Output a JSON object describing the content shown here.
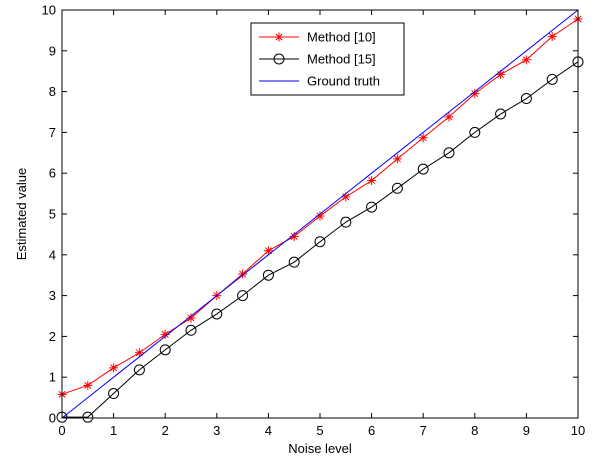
{
  "chart_data": {
    "type": "line",
    "title": "",
    "xlabel": "Noise level",
    "ylabel": "Estimated value",
    "xlim": [
      0,
      10
    ],
    "ylim": [
      0,
      10
    ],
    "xticks": [
      0,
      1,
      2,
      3,
      4,
      5,
      6,
      7,
      8,
      9,
      10
    ],
    "yticks": [
      0,
      1,
      2,
      3,
      4,
      5,
      6,
      7,
      8,
      9,
      10
    ],
    "grid": false,
    "legend_position": "top-center",
    "x": [
      0,
      0.5,
      1,
      1.5,
      2,
      2.5,
      3,
      3.5,
      4,
      4.5,
      5,
      5.5,
      6,
      6.5,
      7,
      7.5,
      8,
      8.5,
      9,
      9.5,
      10
    ],
    "series": [
      {
        "name": "Method [10]",
        "color": "#ff0000",
        "marker": "asterisk",
        "values": [
          0.58,
          0.8,
          1.23,
          1.6,
          2.05,
          2.45,
          3.0,
          3.53,
          4.1,
          4.45,
          4.95,
          5.42,
          5.82,
          6.35,
          6.87,
          7.38,
          7.95,
          8.42,
          8.78,
          9.35,
          9.78
        ]
      },
      {
        "name": "Method [15]",
        "color": "#000000",
        "marker": "circle",
        "values": [
          0.02,
          0.02,
          0.6,
          1.18,
          1.67,
          2.15,
          2.55,
          3.0,
          3.5,
          3.82,
          4.32,
          4.8,
          5.17,
          5.63,
          6.1,
          6.5,
          7.0,
          7.45,
          7.83,
          8.3,
          8.73
        ]
      },
      {
        "name": "Ground truth",
        "color": "#0000ff",
        "marker": "none",
        "values": [
          0,
          0.5,
          1,
          1.5,
          2,
          2.5,
          3,
          3.5,
          4,
          4.5,
          5,
          5.5,
          6,
          6.5,
          7,
          7.5,
          8,
          8.5,
          9,
          9.5,
          10
        ]
      }
    ]
  }
}
